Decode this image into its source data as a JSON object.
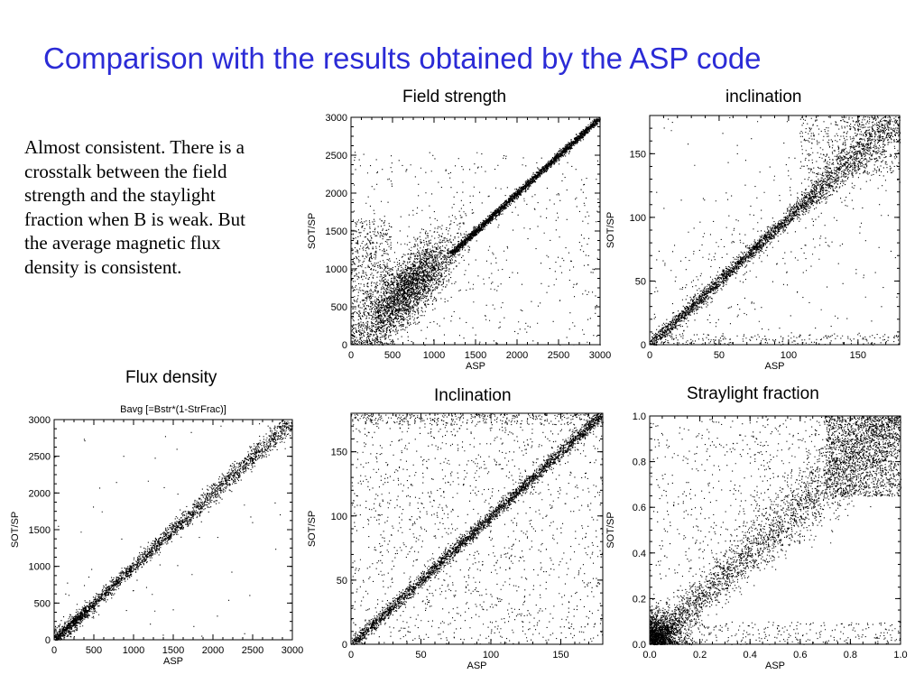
{
  "slide": {
    "title": "Comparison with the results obtained by the ASP code",
    "text_lines": [
      "Almost consistent. There is a",
      "crosstalk between the field",
      "strength and the staylight",
      "fraction when B is weak. But",
      "the average magnetic flux",
      "density is consistent."
    ],
    "colors": {
      "title": "#2b2bd6",
      "text": "#000000",
      "points": "#000000"
    }
  },
  "chart_data": [
    {
      "id": "field_strength",
      "type": "scatter",
      "caption": "Field strength",
      "xlabel": "ASP",
      "ylabel": "SOT/SP",
      "xlim": [
        0,
        3000
      ],
      "ylim": [
        0,
        3000
      ],
      "xticks": [
        "0",
        "500",
        "1000",
        "1500",
        "2000",
        "2500",
        "3000"
      ],
      "yticks": [
        "0",
        "500",
        "1000",
        "1500",
        "2000",
        "2500",
        "3000"
      ],
      "distribution": "dense points along y = x above ~1200; broad cloud with positive offset below ~1200 (densest near 700,750)"
    },
    {
      "id": "inclination_top",
      "type": "scatter",
      "caption": "inclination",
      "xlabel": "ASP",
      "ylabel": "SOT/SP",
      "xlim": [
        0,
        180
      ],
      "ylim": [
        0,
        180
      ],
      "xticks": [
        "0",
        "50",
        "100",
        "150"
      ],
      "yticks": [
        "0",
        "50",
        "100",
        "150"
      ],
      "distribution": "tight band along y = x, widening above 100; scattered points"
    },
    {
      "id": "flux_density",
      "type": "scatter",
      "caption": "Flux density",
      "title": "Bavg [=Bstr*(1-StrFrac)]",
      "xlabel": "ASP",
      "ylabel": "SOT/SP",
      "xlim": [
        0,
        3000
      ],
      "ylim": [
        0,
        3000
      ],
      "xticks": [
        "0",
        "500",
        "1000",
        "1500",
        "2000",
        "2500",
        "3000"
      ],
      "yticks": [
        "0",
        "500",
        "1000",
        "1500",
        "2000",
        "2500",
        "3000"
      ],
      "distribution": "narrow band along y = x"
    },
    {
      "id": "inclination_bottom",
      "type": "scatter",
      "caption": "Inclination",
      "xlabel": "ASP",
      "ylabel": "SOT/SP",
      "xlim": [
        0,
        180
      ],
      "ylim": [
        0,
        180
      ],
      "xticks": [
        "0",
        "50",
        "100",
        "150"
      ],
      "yticks": [
        "0",
        "50",
        "100",
        "150"
      ],
      "distribution": "dense band along y = x with uniform background scatter"
    },
    {
      "id": "straylight_fraction",
      "type": "scatter",
      "caption": "Straylight fraction",
      "xlabel": "ASP",
      "ylabel": "SOT/SP",
      "xlim": [
        0,
        1
      ],
      "ylim": [
        0,
        1
      ],
      "xticks": [
        "0.0",
        "0.2",
        "0.4",
        "0.6",
        "0.8",
        "1.0"
      ],
      "yticks": [
        "0.0",
        "0.2",
        "0.4",
        "0.6",
        "0.8",
        "1.0"
      ],
      "distribution": "band along y = x widening toward 1.0, dense cluster near origin and near (1,1)"
    }
  ]
}
